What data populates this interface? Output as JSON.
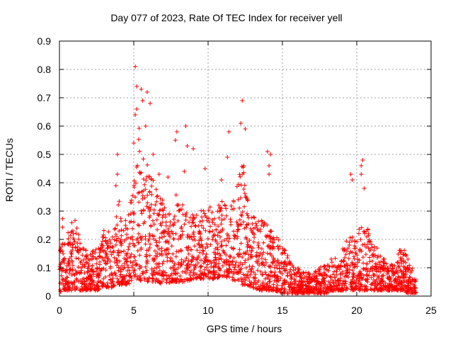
{
  "chart_data": {
    "type": "scatter",
    "title": "Day 077 of 2023, Rate Of TEC Index for receiver yell",
    "xlabel": "GPS time / hours",
    "ylabel": "ROTI / TECUs",
    "xlim": [
      0,
      25
    ],
    "ylim": [
      0,
      0.9
    ],
    "xticks": [
      "0",
      "5",
      "10",
      "15",
      "20",
      "25"
    ],
    "yticks": [
      "0",
      "0.1",
      "0.2",
      "0.3",
      "0.4",
      "0.5",
      "0.6",
      "0.7",
      "0.8",
      "0.9"
    ],
    "grid": true,
    "marker": "+",
    "color": "#ff0000",
    "envelope": {
      "x": [
        0,
        0.2,
        0.5,
        1.0,
        1.5,
        2.0,
        2.5,
        3.0,
        3.5,
        4.0,
        4.5,
        5.0,
        5.3,
        5.6,
        6.0,
        6.5,
        7.0,
        7.5,
        8.0,
        8.5,
        9.0,
        9.5,
        10.0,
        10.5,
        11.0,
        11.5,
        12.0,
        12.3,
        12.6,
        13.0,
        13.5,
        14.0,
        14.5,
        15.0,
        15.5,
        16.0,
        16.5,
        17.0,
        17.5,
        18.0,
        18.5,
        19.0,
        19.5,
        20.0,
        20.3,
        20.6,
        21.0,
        21.5,
        22.0,
        22.5,
        23.0,
        23.5,
        24.0
      ],
      "low": [
        0.01,
        0.02,
        0.02,
        0.02,
        0.02,
        0.02,
        0.02,
        0.03,
        0.03,
        0.04,
        0.04,
        0.05,
        0.06,
        0.05,
        0.05,
        0.05,
        0.04,
        0.05,
        0.05,
        0.05,
        0.06,
        0.06,
        0.06,
        0.06,
        0.07,
        0.06,
        0.05,
        0.04,
        0.04,
        0.03,
        0.02,
        0.02,
        0.02,
        0.01,
        0.01,
        0.01,
        0.01,
        0.01,
        0.01,
        0.01,
        0.02,
        0.02,
        0.02,
        0.02,
        0.02,
        0.02,
        0.02,
        0.02,
        0.02,
        0.02,
        0.02,
        0.01,
        0.01
      ],
      "high": [
        0.32,
        0.3,
        0.22,
        0.28,
        0.18,
        0.16,
        0.17,
        0.24,
        0.22,
        0.34,
        0.26,
        0.4,
        0.62,
        0.52,
        0.46,
        0.38,
        0.34,
        0.3,
        0.4,
        0.3,
        0.3,
        0.3,
        0.33,
        0.3,
        0.35,
        0.33,
        0.4,
        0.48,
        0.35,
        0.28,
        0.28,
        0.26,
        0.22,
        0.18,
        0.13,
        0.1,
        0.09,
        0.08,
        0.1,
        0.12,
        0.14,
        0.16,
        0.22,
        0.2,
        0.28,
        0.26,
        0.2,
        0.16,
        0.12,
        0.12,
        0.18,
        0.14,
        0.06
      ]
    },
    "outliers": [
      {
        "x": 5.1,
        "y": 0.81
      },
      {
        "x": 5.2,
        "y": 0.74
      },
      {
        "x": 5.5,
        "y": 0.73
      },
      {
        "x": 5.9,
        "y": 0.72
      },
      {
        "x": 5.6,
        "y": 0.69
      },
      {
        "x": 6.1,
        "y": 0.68
      },
      {
        "x": 5.2,
        "y": 0.66
      },
      {
        "x": 5.1,
        "y": 0.64
      },
      {
        "x": 12.3,
        "y": 0.69
      },
      {
        "x": 12.2,
        "y": 0.61
      },
      {
        "x": 12.5,
        "y": 0.59
      },
      {
        "x": 11.4,
        "y": 0.58
      },
      {
        "x": 8.5,
        "y": 0.6
      },
      {
        "x": 7.9,
        "y": 0.58
      },
      {
        "x": 7.8,
        "y": 0.55
      },
      {
        "x": 8.6,
        "y": 0.53
      },
      {
        "x": 9.0,
        "y": 0.52
      },
      {
        "x": 5.0,
        "y": 0.54
      },
      {
        "x": 5.8,
        "y": 0.6
      },
      {
        "x": 11.3,
        "y": 0.49
      },
      {
        "x": 14.0,
        "y": 0.51
      },
      {
        "x": 14.2,
        "y": 0.5
      },
      {
        "x": 14.1,
        "y": 0.46
      },
      {
        "x": 14.1,
        "y": 0.43
      },
      {
        "x": 20.4,
        "y": 0.48
      },
      {
        "x": 20.3,
        "y": 0.46
      },
      {
        "x": 20.3,
        "y": 0.43
      },
      {
        "x": 19.6,
        "y": 0.43
      },
      {
        "x": 19.7,
        "y": 0.41
      },
      {
        "x": 20.5,
        "y": 0.38
      },
      {
        "x": 3.9,
        "y": 0.5
      },
      {
        "x": 3.9,
        "y": 0.43
      },
      {
        "x": 3.8,
        "y": 0.39
      },
      {
        "x": 12.4,
        "y": 0.46
      },
      {
        "x": 6.7,
        "y": 0.43
      },
      {
        "x": 8.4,
        "y": 0.44
      },
      {
        "x": 9.8,
        "y": 0.45
      },
      {
        "x": 10.9,
        "y": 0.41
      },
      {
        "x": 7.3,
        "y": 0.42
      },
      {
        "x": 6.3,
        "y": 0.5
      }
    ]
  }
}
